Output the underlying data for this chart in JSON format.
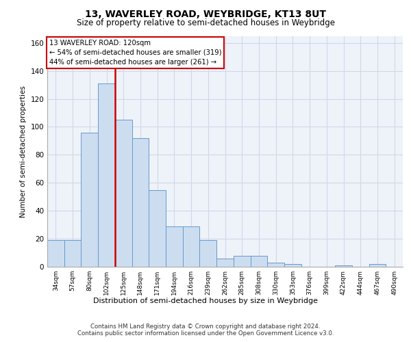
{
  "title1": "13, WAVERLEY ROAD, WEYBRIDGE, KT13 8UT",
  "title2": "Size of property relative to semi-detached houses in Weybridge",
  "xlabel": "Distribution of semi-detached houses by size in Weybridge",
  "ylabel": "Number of semi-detached properties",
  "bar_labels": [
    "34sqm",
    "57sqm",
    "80sqm",
    "102sqm",
    "125sqm",
    "148sqm",
    "171sqm",
    "194sqm",
    "216sqm",
    "239sqm",
    "262sqm",
    "285sqm",
    "308sqm",
    "330sqm",
    "353sqm",
    "376sqm",
    "399sqm",
    "422sqm",
    "444sqm",
    "467sqm",
    "490sqm"
  ],
  "bar_values": [
    19,
    19,
    96,
    131,
    105,
    92,
    55,
    29,
    29,
    19,
    6,
    8,
    8,
    3,
    2,
    0,
    0,
    1,
    0,
    2,
    0
  ],
  "bar_color": "#ccddf0",
  "bar_edge_color": "#6699cc",
  "pct_smaller": "54%",
  "n_smaller": 319,
  "pct_larger": "44%",
  "n_larger": 261,
  "property_sqm": "120sqm",
  "property_label": "13 WAVERLEY ROAD",
  "vline_x": 3.5,
  "vline_color": "#cc0000",
  "annotation_box_edge_color": "#cc0000",
  "ylim": [
    0,
    165
  ],
  "yticks": [
    0,
    20,
    40,
    60,
    80,
    100,
    120,
    140,
    160
  ],
  "background_color": "#eef2f9",
  "grid_color": "#d0d8e8",
  "footer_line1": "Contains HM Land Registry data © Crown copyright and database right 2024.",
  "footer_line2": "Contains public sector information licensed under the Open Government Licence v3.0."
}
